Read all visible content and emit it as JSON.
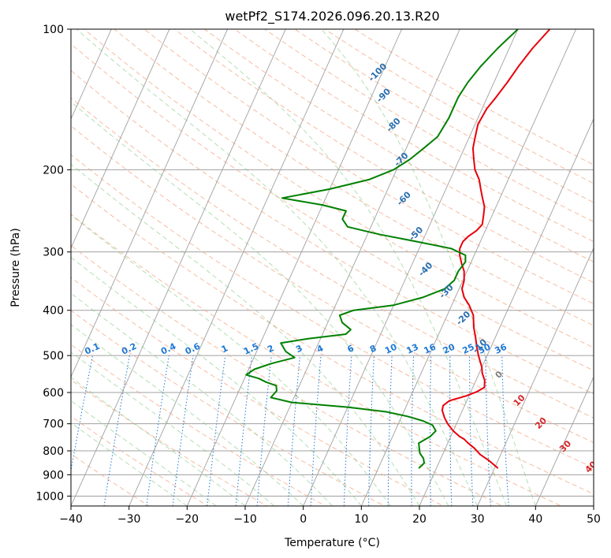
{
  "chart_data": {
    "type": "line",
    "title": "wetPf2_S174.2026.096.20.13.R20",
    "xlabel": "Temperature (°C)",
    "ylabel": "Pressure (hPa)",
    "xlim": [
      -40,
      50
    ],
    "ylim": [
      1050,
      100
    ],
    "y_scale": "log",
    "grid": true,
    "x_ticks": [
      "−40",
      "−30",
      "−20",
      "−10",
      "0",
      "10",
      "20",
      "30",
      "40",
      "50"
    ],
    "x_tick_values": [
      -40,
      -30,
      -20,
      -10,
      0,
      10,
      20,
      30,
      40,
      50
    ],
    "y_ticks": [
      "100",
      "200",
      "300",
      "400",
      "500",
      "600",
      "700",
      "800",
      "900",
      "1000"
    ],
    "y_tick_values": [
      100,
      200,
      300,
      400,
      500,
      600,
      700,
      800,
      900,
      1000
    ],
    "colors": {
      "temperature": "#e8000b",
      "dewpoint": "#008000",
      "isotherm": "#a0a0a0",
      "dry_adiabat": "#f4a582",
      "moist_adiabat": "#74c476",
      "mixing_ratio": "#1f78d4",
      "dry_label": "#d62728",
      "zero_label": "#7f7f7f"
    },
    "series": [
      {
        "key": "temperature",
        "points": [
          [
            30.5,
            870
          ],
          [
            28.5,
            840
          ],
          [
            26.5,
            815
          ],
          [
            25.0,
            790
          ],
          [
            23.5,
            770
          ],
          [
            22.5,
            755
          ],
          [
            21.5,
            745
          ],
          [
            20.0,
            725
          ],
          [
            18.5,
            700
          ],
          [
            17.5,
            680
          ],
          [
            16.5,
            655
          ],
          [
            16.3,
            640
          ],
          [
            17.0,
            625
          ],
          [
            19.5,
            610
          ],
          [
            21.0,
            598
          ],
          [
            22.0,
            585
          ],
          [
            21.5,
            565
          ],
          [
            20.5,
            545
          ],
          [
            20.0,
            530
          ],
          [
            18.5,
            500
          ],
          [
            17.5,
            478
          ],
          [
            16.5,
            455
          ],
          [
            15.5,
            435
          ],
          [
            14.5,
            410
          ],
          [
            13.0,
            390
          ],
          [
            11.5,
            375
          ],
          [
            10.5,
            360
          ],
          [
            10.2,
            345
          ],
          [
            9.5,
            330
          ],
          [
            8.5,
            318
          ],
          [
            7.5,
            305
          ],
          [
            7.0,
            295
          ],
          [
            7.0,
            285
          ],
          [
            7.5,
            278
          ],
          [
            8.5,
            270
          ],
          [
            9.0,
            262
          ],
          [
            8.5,
            250
          ],
          [
            8.0,
            240
          ],
          [
            7.0,
            230
          ],
          [
            6.0,
            220
          ],
          [
            5.0,
            210
          ],
          [
            3.5,
            200
          ],
          [
            2.5,
            190
          ],
          [
            1.5,
            180
          ],
          [
            1.0,
            170
          ],
          [
            0.5,
            160
          ],
          [
            0.8,
            148
          ],
          [
            1.5,
            140
          ],
          [
            2.3,
            130
          ],
          [
            3.0,
            120
          ],
          [
            4.0,
            110
          ],
          [
            5.5,
            100
          ]
        ]
      },
      {
        "key": "dewpoint",
        "points": [
          [
            17.0,
            870
          ],
          [
            17.5,
            850
          ],
          [
            17.0,
            830
          ],
          [
            16.0,
            810
          ],
          [
            15.5,
            790
          ],
          [
            15.0,
            770
          ],
          [
            16.5,
            745
          ],
          [
            17.0,
            725
          ],
          [
            16.0,
            705
          ],
          [
            14.0,
            690
          ],
          [
            11.0,
            675
          ],
          [
            7.0,
            660
          ],
          [
            0.0,
            645
          ],
          [
            -10.0,
            630
          ],
          [
            -14.0,
            615
          ],
          [
            -13.5,
            595
          ],
          [
            -14.0,
            580
          ],
          [
            -16.0,
            570
          ],
          [
            -17.5,
            560
          ],
          [
            -20.0,
            550
          ],
          [
            -19.0,
            535
          ],
          [
            -16.5,
            520
          ],
          [
            -13.0,
            505
          ],
          [
            -15.0,
            490
          ],
          [
            -16.5,
            470
          ],
          [
            -12.0,
            460
          ],
          [
            -6.0,
            450
          ],
          [
            -5.5,
            440
          ],
          [
            -7.5,
            425
          ],
          [
            -8.5,
            410
          ],
          [
            -6.5,
            400
          ],
          [
            0.0,
            390
          ],
          [
            4.5,
            375
          ],
          [
            7.5,
            360
          ],
          [
            8.5,
            345
          ],
          [
            8.5,
            330
          ],
          [
            9.0,
            315
          ],
          [
            8.5,
            305
          ],
          [
            5.5,
            295
          ],
          [
            -1.0,
            285
          ],
          [
            -8.0,
            275
          ],
          [
            -14.0,
            265
          ],
          [
            -15.5,
            255
          ],
          [
            -15.5,
            245
          ],
          [
            -20.0,
            238
          ],
          [
            -27.5,
            230
          ],
          [
            -20.0,
            220
          ],
          [
            -14.0,
            210
          ],
          [
            -10.5,
            200
          ],
          [
            -8.5,
            190
          ],
          [
            -7.0,
            180
          ],
          [
            -5.5,
            170
          ],
          [
            -5.0,
            155
          ],
          [
            -5.0,
            140
          ],
          [
            -4.5,
            130
          ],
          [
            -3.5,
            120
          ],
          [
            -2.0,
            110
          ],
          [
            0.0,
            100
          ]
        ]
      }
    ],
    "dry_adiabat_labels": [
      "-100",
      "-90",
      "-80",
      "-70",
      "-60",
      "-50",
      "-40",
      "-30",
      "-20",
      "-10",
      "0",
      "10",
      "20",
      "30",
      "40"
    ],
    "dry_adiabat_label_positions": [
      [
        -20.3,
        125
      ],
      [
        -17.5,
        140
      ],
      [
        -13.5,
        162
      ],
      [
        -9.5,
        192
      ],
      [
        -6.0,
        233
      ],
      [
        -1.2,
        277
      ],
      [
        3.2,
        330
      ],
      [
        8.5,
        368
      ],
      [
        13.5,
        420
      ],
      [
        18.5,
        482
      ],
      [
        24.0,
        555
      ],
      [
        29.5,
        630
      ],
      [
        35.0,
        705
      ],
      [
        41.0,
        790
      ],
      [
        47.0,
        875
      ]
    ],
    "mixing_ratio_labels": [
      "0.1",
      "0.2",
      "0.4",
      "0.6",
      "1",
      "1.5",
      "2",
      "3",
      "4",
      "6",
      "8",
      "10",
      "13",
      "16",
      "20",
      "25",
      "30",
      "36"
    ],
    "mixing_ratio_values": [
      0.1,
      0.2,
      0.4,
      0.6,
      1,
      1.5,
      2,
      3,
      4,
      6,
      8,
      10,
      13,
      16,
      20,
      25,
      30,
      36
    ]
  }
}
